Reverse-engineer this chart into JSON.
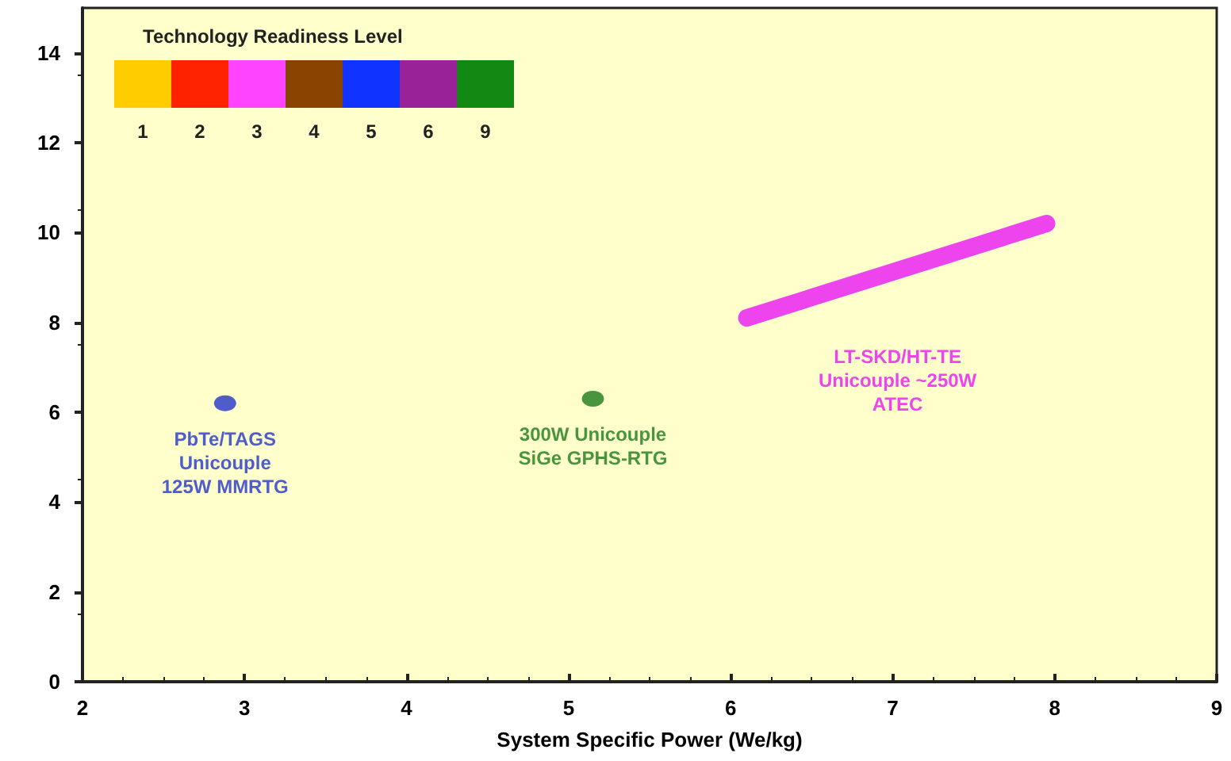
{
  "chart_data": {
    "type": "scatter",
    "xlabel": "System Specific Power (We/kg)",
    "xlim": [
      2,
      9
    ],
    "xticks": [
      2,
      3,
      4,
      5,
      6,
      7,
      8,
      9
    ],
    "ylim": [
      0,
      15
    ],
    "yticks": [
      0,
      2,
      4,
      6,
      8,
      10,
      12,
      14
    ],
    "grid": false,
    "marker": "circle",
    "annotations": [
      "Technology Readiness Level",
      "1",
      "2",
      "3",
      "4",
      "5",
      "6",
      "9"
    ],
    "series": [
      {
        "name": "PbTe/TAGS\nUnicouple\n125W MMRTG",
        "color": "#2233cc",
        "x": [
          2.88
        ],
        "values": [
          6.2
        ]
      },
      {
        "name": "300W Unicouple\nSiGe GPHS-RTG",
        "color": "#1a7a1a",
        "x": [
          5.15
        ],
        "values": [
          6.3
        ]
      },
      {
        "name": "LT-SKD/HT-TE\nUnicouple ~250W\nATEC",
        "type": "line",
        "marker": "none",
        "color": "#ee44ee",
        "x": [
          6.1,
          7.95
        ],
        "values": [
          8.1,
          10.2
        ]
      }
    ]
  }
}
